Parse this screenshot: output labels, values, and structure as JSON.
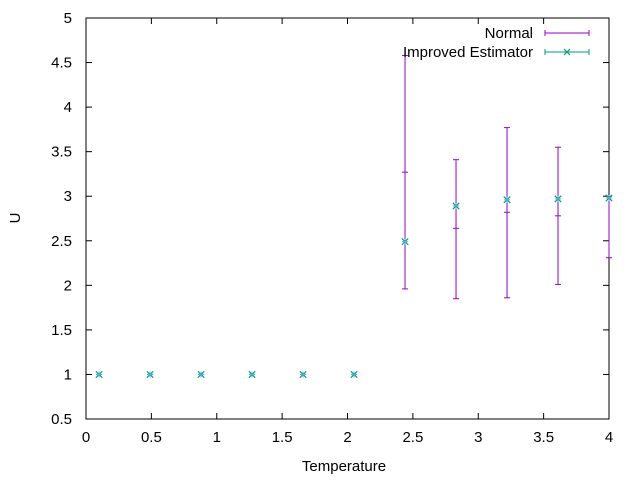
{
  "chart_data": {
    "type": "scatter",
    "title": "",
    "xlabel": "Temperature",
    "ylabel": "U",
    "xlim": [
      0,
      4
    ],
    "ylim": [
      0.5,
      5
    ],
    "xticks": [
      0,
      0.5,
      1,
      1.5,
      2,
      2.5,
      3,
      3.5,
      4
    ],
    "xtick_labels": [
      "0",
      "0.5",
      "1",
      "1.5",
      "2",
      "2.5",
      "3",
      "3.5",
      "4"
    ],
    "yticks": [
      0.5,
      1,
      1.5,
      2,
      2.5,
      3,
      3.5,
      4,
      4.5,
      5
    ],
    "ytick_labels": [
      "0.5",
      "1",
      "1.5",
      "2",
      "2.5",
      "3",
      "3.5",
      "4",
      "4.5",
      "5"
    ],
    "grid": false,
    "legend_position": "top-right",
    "series": [
      {
        "name": "Normal",
        "style": "errorbars",
        "color": "#9400d3",
        "points": [
          {
            "x": 0.1,
            "y": 1.0,
            "ylow": 1.0,
            "yhigh": 1.0
          },
          {
            "x": 0.49,
            "y": 1.0,
            "ylow": 1.0,
            "yhigh": 1.0
          },
          {
            "x": 0.88,
            "y": 1.0,
            "ylow": 1.0,
            "yhigh": 1.0
          },
          {
            "x": 1.27,
            "y": 1.0,
            "ylow": 1.0,
            "yhigh": 1.0
          },
          {
            "x": 1.66,
            "y": 1.0,
            "ylow": 1.0,
            "yhigh": 1.0
          },
          {
            "x": 2.05,
            "y": 1.0,
            "ylow": 1.0,
            "yhigh": 1.0
          },
          {
            "x": 2.44,
            "y": 2.49,
            "ylow": 1.96,
            "yhigh": 4.58
          },
          {
            "x": 2.83,
            "y": 2.89,
            "ylow": 1.85,
            "yhigh": 3.41
          },
          {
            "x": 3.22,
            "y": 2.96,
            "ylow": 1.86,
            "yhigh": 3.77
          },
          {
            "x": 3.61,
            "y": 2.97,
            "ylow": 2.01,
            "yhigh": 3.55
          },
          {
            "x": 4.0,
            "y": 2.98,
            "ylow": 2.31,
            "yhigh": 3.0
          }
        ],
        "secondary_ticks": [
          {
            "x": 2.44,
            "y": 3.27
          },
          {
            "x": 2.83,
            "y": 2.64
          },
          {
            "x": 3.22,
            "y": 2.82
          },
          {
            "x": 3.61,
            "y": 2.78
          }
        ]
      },
      {
        "name": "Improved Estimator",
        "style": "points",
        "color": "#009e73",
        "points": [
          {
            "x": 0.1,
            "y": 1.0
          },
          {
            "x": 0.49,
            "y": 1.0
          },
          {
            "x": 0.88,
            "y": 1.0
          },
          {
            "x": 1.27,
            "y": 1.0
          },
          {
            "x": 1.66,
            "y": 1.0
          },
          {
            "x": 2.05,
            "y": 1.0
          },
          {
            "x": 2.44,
            "y": 2.49
          },
          {
            "x": 2.83,
            "y": 2.89
          },
          {
            "x": 3.22,
            "y": 2.96
          },
          {
            "x": 3.61,
            "y": 2.97
          },
          {
            "x": 4.0,
            "y": 2.98
          }
        ]
      }
    ],
    "overlay_point_color": "#56b4e9"
  }
}
